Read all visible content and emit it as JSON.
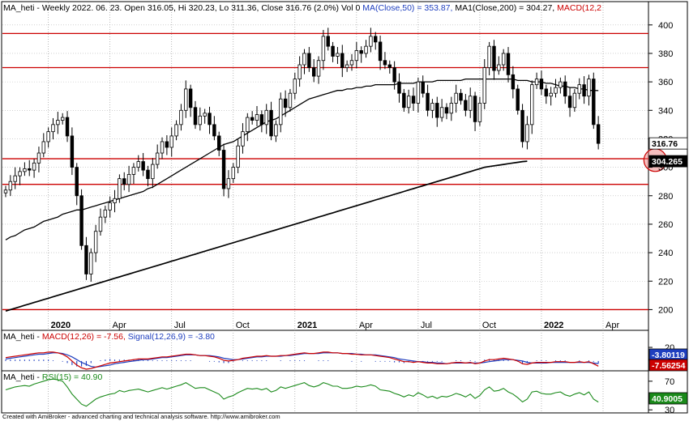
{
  "header": {
    "main": {
      "prefix": "MA_heti - Weekly 2022. 06. 23. Open 316.05, Hi 320.23, Lo 311.36, Close 316.76 (2.0%) Vol 0 ",
      "ma50": "MA(Close,50) = 353.87, ",
      "ma200": "MA1(Close,200) = 304.27, ",
      "macd": "MACD(12,2"
    },
    "macd": {
      "prefix": "MA_heti - ",
      "macd": "MACD(12,26) = -7.56, ",
      "signal": "Signal(12,26,9) = -3.80"
    },
    "rsi": {
      "prefix": "MA_heti - ",
      "rsi": "RSI(15) = 40.90"
    }
  },
  "footer": "Created with AmiBroker - advanced charting and technical analysis software. http://www.amibroker.com",
  "colors": {
    "price": "#000000",
    "ma": "#000000",
    "levels": "#cc0000",
    "macd": "#cc0000",
    "signal": "#1f3fbf",
    "histogram": "#1f3fbf",
    "rsi": "#1a8a1a",
    "header_blue": "#1f3fbf",
    "header_red": "#cc0000"
  },
  "chart_data": [
    {
      "type": "candlestick",
      "panel": "price",
      "ylim": [
        190,
        405
      ],
      "yticks": [
        200,
        220,
        240,
        260,
        280,
        300,
        320,
        340,
        360,
        380,
        400
      ],
      "x_labels": [
        {
          "label": "2020",
          "bold": true,
          "week": 9
        },
        {
          "label": "Apr",
          "bold": false,
          "week": 22
        },
        {
          "label": "Jul",
          "bold": false,
          "week": 35
        },
        {
          "label": "Oct",
          "bold": false,
          "week": 48
        },
        {
          "label": "2021",
          "bold": true,
          "week": 61
        },
        {
          "label": "Apr",
          "bold": false,
          "week": 74
        },
        {
          "label": "Jul",
          "bold": false,
          "week": 87
        },
        {
          "label": "Oct",
          "bold": false,
          "week": 100
        },
        {
          "label": "2022",
          "bold": true,
          "week": 113
        },
        {
          "label": "Apr",
          "bold": false,
          "week": 126
        }
      ],
      "horizontal_levels": [
        200,
        288,
        306,
        370,
        394
      ],
      "value_labels": [
        {
          "value": 316.76,
          "text": "316.76"
        },
        {
          "value": 304.265,
          "text": "304.265"
        }
      ],
      "highlight": {
        "week": 137,
        "value": 305
      },
      "closes": [
        284,
        290,
        294,
        297,
        299,
        298,
        303,
        310,
        318,
        325,
        330,
        333,
        335,
        322,
        300,
        280,
        245,
        225,
        240,
        255,
        265,
        270,
        275,
        278,
        292,
        288,
        295,
        300,
        304,
        298,
        292,
        302,
        310,
        318,
        314,
        322,
        330,
        340,
        355,
        342,
        330,
        336,
        338,
        330,
        322,
        312,
        285,
        292,
        300,
        315,
        325,
        335,
        333,
        337,
        330,
        340,
        322,
        330,
        348,
        342,
        352,
        362,
        372,
        380,
        370,
        364,
        375,
        392,
        385,
        378,
        380,
        370,
        372,
        375,
        382,
        380,
        385,
        392,
        388,
        375,
        372,
        370,
        360,
        352,
        342,
        350,
        345,
        360,
        352,
        340,
        345,
        335,
        342,
        338,
        345,
        352,
        347,
        340,
        350,
        332,
        345,
        370,
        385,
        368,
        372,
        380,
        365,
        355,
        340,
        318,
        330,
        358,
        362,
        355,
        350,
        352,
        356,
        360,
        350,
        342,
        352,
        358,
        350,
        362,
        330,
        316.76
      ],
      "ma50": [
        249,
        251,
        252,
        254,
        256,
        257,
        258,
        260,
        262,
        263,
        264,
        265,
        267,
        268,
        269,
        270,
        270,
        271,
        272,
        273,
        274,
        275,
        276,
        277,
        278,
        279,
        280,
        281,
        282,
        283,
        285,
        286,
        288,
        290,
        292,
        294,
        296,
        298,
        300,
        302,
        304,
        306,
        308,
        310,
        312,
        314,
        316,
        317,
        318,
        320,
        322,
        324,
        326,
        328,
        330,
        332,
        333,
        334,
        336,
        338,
        340,
        342,
        344,
        346,
        348,
        349,
        350,
        351,
        352,
        353,
        354,
        354,
        355,
        355,
        356,
        356,
        357,
        357,
        358,
        358,
        358,
        358,
        358,
        359,
        359,
        359,
        359,
        360,
        360,
        360,
        360,
        361,
        361,
        361,
        361,
        361,
        361,
        362,
        362,
        362,
        362,
        362,
        362,
        362,
        362,
        362,
        362,
        362,
        361,
        361,
        361,
        360,
        360,
        360,
        359,
        359,
        358,
        357,
        357,
        356,
        356,
        355,
        355,
        354,
        354,
        353.87
      ],
      "ma200": [
        199,
        200,
        201,
        202,
        203,
        204,
        205,
        206,
        207,
        208,
        209,
        210,
        211,
        212,
        213,
        214,
        215,
        216,
        217,
        218,
        219,
        220,
        221,
        222,
        223,
        224,
        225,
        226,
        227,
        228,
        229,
        230,
        231,
        232,
        233,
        234,
        235,
        236,
        237,
        238,
        239,
        240,
        241,
        242,
        243,
        244,
        245,
        246,
        247,
        248,
        249,
        250,
        251,
        252,
        253,
        254,
        255,
        256,
        257,
        258,
        259,
        260,
        261,
        262,
        263,
        264,
        265,
        266,
        267,
        268,
        269,
        270,
        271,
        272,
        273,
        274,
        275,
        276,
        277,
        278,
        279,
        280,
        281,
        282,
        283,
        284,
        285,
        286,
        287,
        288,
        289,
        290,
        291,
        292,
        293,
        294,
        295,
        296,
        297,
        298,
        299,
        300,
        300.5,
        301,
        301.5,
        302,
        302.5,
        303,
        303.5,
        304,
        304.27
      ]
    },
    {
      "type": "line",
      "panel": "macd",
      "ylim": [
        -12,
        26
      ],
      "yticks": [
        20
      ],
      "series": [
        {
          "name": "MACD(12,26)",
          "last": -7.56,
          "label": "-7.56254"
        },
        {
          "name": "Signal(12,26,9)",
          "last": -3.8,
          "label": "-3.80119"
        }
      ],
      "macd": [
        5,
        6,
        7,
        8,
        9,
        10,
        11,
        12,
        12,
        13,
        13,
        12,
        10,
        6,
        0,
        -6,
        -10,
        -12,
        -11,
        -9,
        -7,
        -5,
        -3,
        -2,
        -1,
        0,
        1,
        2,
        3,
        3,
        3,
        4,
        5,
        6,
        6,
        7,
        8,
        9,
        10,
        10,
        9,
        8,
        8,
        7,
        6,
        4,
        1,
        0,
        1,
        2,
        4,
        5,
        6,
        7,
        7,
        8,
        7,
        7,
        8,
        8,
        9,
        10,
        11,
        12,
        11,
        11,
        12,
        13,
        13,
        12,
        12,
        11,
        11,
        10,
        10,
        9,
        9,
        9,
        8,
        7,
        6,
        5,
        3,
        1,
        -1,
        -1,
        -2,
        -1,
        -2,
        -3,
        -3,
        -4,
        -4,
        -4,
        -3,
        -2,
        -2,
        -3,
        -2,
        -4,
        -3,
        0,
        2,
        2,
        3,
        4,
        3,
        2,
        0,
        -4,
        -5,
        -3,
        -2,
        -2,
        -2,
        -2,
        -1,
        -1,
        -1,
        -2,
        -2,
        -1,
        -2,
        -1,
        -4,
        -7.56
      ],
      "signal": [
        3,
        4,
        5,
        6,
        7,
        8,
        9,
        10,
        10,
        11,
        12,
        12,
        11,
        9,
        6,
        2,
        -2,
        -5,
        -8,
        -9,
        -8,
        -7,
        -6,
        -4,
        -3,
        -2,
        -1,
        0,
        1,
        2,
        2,
        3,
        4,
        5,
        5,
        6,
        7,
        8,
        9,
        9,
        9,
        8,
        8,
        8,
        7,
        6,
        4,
        3,
        2,
        2,
        3,
        4,
        5,
        6,
        6,
        7,
        7,
        7,
        7,
        8,
        8,
        9,
        10,
        11,
        11,
        11,
        11,
        12,
        12,
        12,
        12,
        11,
        11,
        11,
        10,
        10,
        9,
        9,
        9,
        8,
        7,
        6,
        5,
        3,
        2,
        1,
        0,
        -1,
        -1,
        -2,
        -2,
        -3,
        -3,
        -4,
        -3,
        -3,
        -3,
        -3,
        -3,
        -3,
        -3,
        -2,
        -1,
        0,
        1,
        2,
        2,
        2,
        1,
        0,
        -2,
        -3,
        -3,
        -3,
        -3,
        -2,
        -2,
        -2,
        -2,
        -2,
        -2,
        -2,
        -2,
        -2,
        -3,
        -3.8
      ]
    },
    {
      "type": "line",
      "panel": "rsi",
      "ylim": [
        28,
        80
      ],
      "yticks": [
        70,
        30
      ],
      "series": [
        {
          "name": "RSI(15)",
          "last": 40.9,
          "label": "40.9005"
        }
      ],
      "rsi": [
        58,
        60,
        62,
        63,
        64,
        63,
        66,
        68,
        70,
        72,
        73,
        72,
        70,
        62,
        52,
        45,
        38,
        35,
        40,
        45,
        48,
        50,
        52,
        53,
        57,
        55,
        57,
        58,
        59,
        57,
        55,
        57,
        59,
        61,
        59,
        61,
        63,
        65,
        68,
        64,
        60,
        61,
        61,
        58,
        55,
        52,
        45,
        48,
        50,
        54,
        57,
        60,
        59,
        60,
        58,
        60,
        55,
        57,
        62,
        60,
        62,
        64,
        66,
        68,
        64,
        62,
        64,
        68,
        66,
        63,
        63,
        60,
        60,
        61,
        63,
        62,
        63,
        65,
        63,
        58,
        57,
        56,
        53,
        51,
        48,
        51,
        49,
        54,
        51,
        47,
        49,
        46,
        49,
        48,
        50,
        53,
        51,
        48,
        52,
        46,
        50,
        58,
        62,
        56,
        57,
        60,
        55,
        52,
        47,
        41,
        45,
        55,
        56,
        53,
        52,
        52,
        54,
        55,
        51,
        49,
        52,
        54,
        51,
        55,
        45,
        40.9
      ]
    }
  ]
}
